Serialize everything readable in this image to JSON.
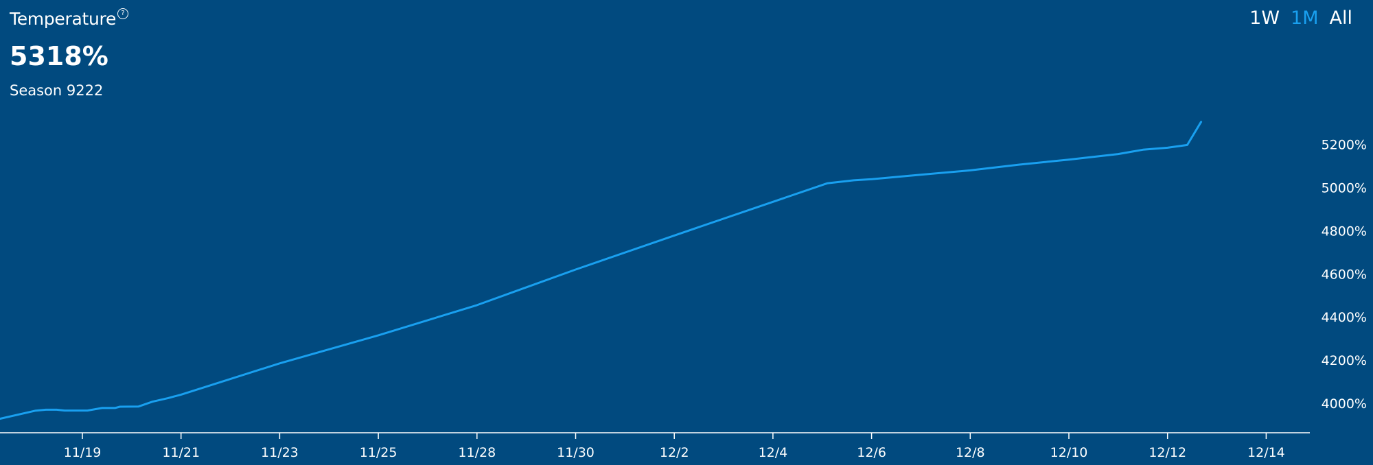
{
  "header": {
    "title": "Temperature",
    "help_icon": "question-circle-icon",
    "value": "5318%",
    "subtitle": "Season 9222"
  },
  "range_selector": {
    "options": [
      "1W",
      "1M",
      "All"
    ],
    "selected": "1M"
  },
  "colors": {
    "background": "#014a7f",
    "line": "#19a0f0",
    "text": "#ffffff",
    "active": "#19a0f0"
  },
  "chart_data": {
    "type": "line",
    "title": "Temperature",
    "xlabel": "",
    "ylabel": "",
    "x_tick_labels": [
      "11/19",
      "11/21",
      "11/23",
      "11/25",
      "11/28",
      "11/30",
      "12/2",
      "12/4",
      "12/6",
      "12/8",
      "12/10",
      "12/12",
      "12/14"
    ],
    "y_tick_labels": [
      "4000%",
      "4200%",
      "4400%",
      "4600%",
      "4800%",
      "5000%",
      "5200%"
    ],
    "y_ticks": [
      4000,
      4200,
      4400,
      4600,
      4800,
      5000,
      5200
    ],
    "ylim": [
      3863,
      5425
    ],
    "x_index_range": [
      -1.67,
      11.34
    ],
    "y_axis_position": "right",
    "grid": false,
    "series": [
      {
        "name": "Temperature",
        "points": [
          [
            -1.67,
            3893
          ],
          [
            -1.61,
            3895
          ],
          [
            -1.43,
            3895
          ],
          [
            -1.15,
            3895
          ],
          [
            -0.48,
            3965
          ],
          [
            -0.37,
            3970
          ],
          [
            -0.26,
            3970
          ],
          [
            -0.18,
            3966
          ],
          [
            0.05,
            3966
          ],
          [
            0.2,
            3978
          ],
          [
            0.33,
            3978
          ],
          [
            0.38,
            3984
          ],
          [
            0.57,
            3985
          ],
          [
            0.71,
            4007
          ],
          [
            0.87,
            4024
          ],
          [
            1.0,
            4040
          ],
          [
            2.0,
            4185
          ],
          [
            3.0,
            4315
          ],
          [
            4.0,
            4455
          ],
          [
            5.0,
            4620
          ],
          [
            6.0,
            4778
          ],
          [
            7.0,
            4934
          ],
          [
            7.55,
            5020
          ],
          [
            7.82,
            5034
          ],
          [
            8.0,
            5039
          ],
          [
            8.5,
            5060
          ],
          [
            9.0,
            5080
          ],
          [
            9.5,
            5107
          ],
          [
            10.0,
            5130
          ],
          [
            10.5,
            5156
          ],
          [
            10.75,
            5176
          ],
          [
            11.0,
            5185
          ],
          [
            11.2,
            5198
          ],
          [
            11.34,
            5305
          ]
        ]
      }
    ]
  }
}
